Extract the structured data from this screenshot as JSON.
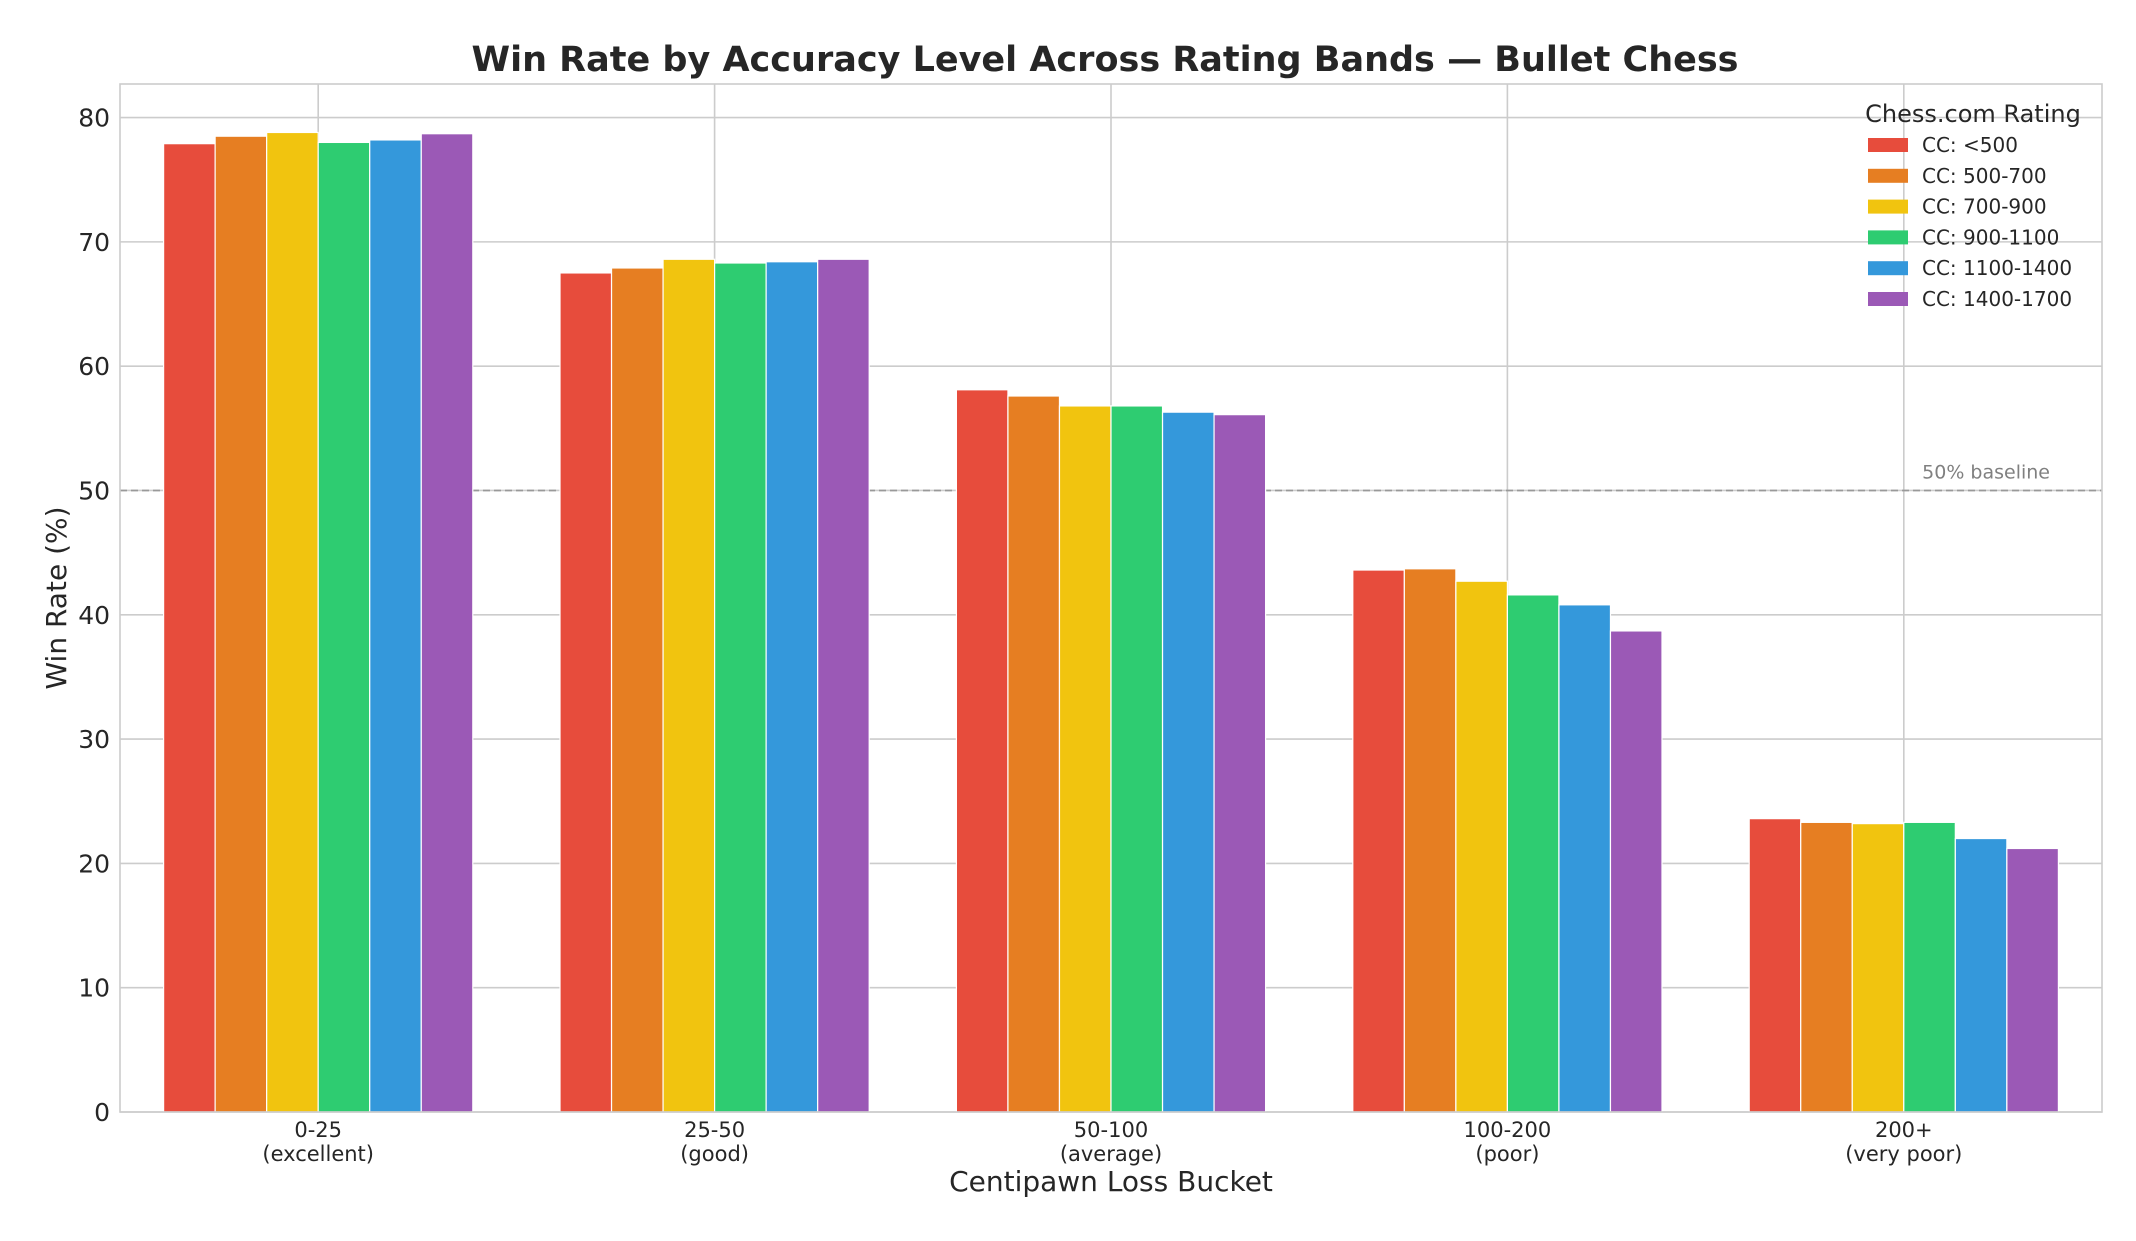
{
  "chart_data": {
    "type": "bar",
    "title": "Win Rate by Accuracy Level Across Rating Bands — Bullet Chess",
    "xlabel": "Centipawn Loss Bucket",
    "ylabel": "Win Rate (%)",
    "ylim": [
      0,
      82.7
    ],
    "yticks": [
      "0",
      "10",
      "20",
      "30",
      "40",
      "50",
      "60",
      "70",
      "80"
    ],
    "grid": true,
    "categories": [
      {
        "range": "0-25",
        "label": "(excellent)"
      },
      {
        "range": "25-50",
        "label": "(good)"
      },
      {
        "range": "50-100",
        "label": "(average)"
      },
      {
        "range": "100-200",
        "label": "(poor)"
      },
      {
        "range": "200+",
        "label": "(very poor)"
      }
    ],
    "series": [
      {
        "name": "CC: <500",
        "color": "#e74c3c",
        "values": [
          77.9,
          67.5,
          58.1,
          43.6,
          23.6
        ]
      },
      {
        "name": "CC: 500-700",
        "color": "#e67e22",
        "values": [
          78.5,
          67.9,
          57.6,
          43.7,
          23.3
        ]
      },
      {
        "name": "CC: 700-900",
        "color": "#f1c40f",
        "values": [
          78.8,
          68.6,
          56.8,
          42.7,
          23.2
        ]
      },
      {
        "name": "CC: 900-1100",
        "color": "#2ecc71",
        "values": [
          78.0,
          68.3,
          56.8,
          41.6,
          23.3
        ]
      },
      {
        "name": "CC: 1100-1400",
        "color": "#3498db",
        "values": [
          78.2,
          68.4,
          56.3,
          40.8,
          22.0
        ]
      },
      {
        "name": "CC: 1400-1700",
        "color": "#9b59b6",
        "values": [
          78.7,
          68.6,
          56.1,
          38.7,
          21.2
        ]
      }
    ],
    "legend": {
      "title": "Chess.com Rating",
      "placement": "top-right"
    },
    "baseline": {
      "value": 50,
      "label": "50% baseline",
      "color": "#999999"
    }
  }
}
